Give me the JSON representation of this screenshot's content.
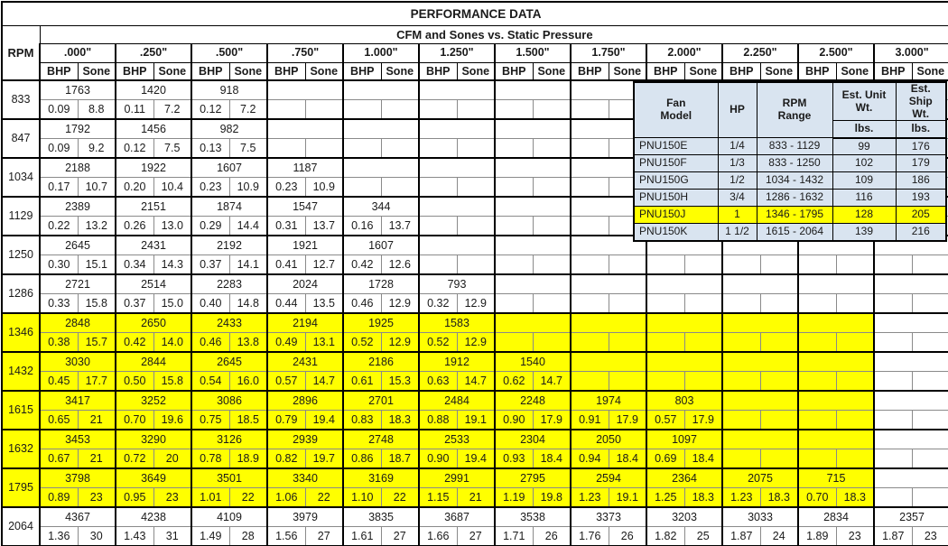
{
  "title": "PERFORMANCE DATA",
  "subtitle": "CFM and Sones vs. Static Pressure",
  "rpm_header": "RPM",
  "col_headers": {
    "bhp": "BHP",
    "sone": "Sone"
  },
  "pressures": [
    ".000\"",
    ".250\"",
    ".500\"",
    ".750\"",
    "1.000\"",
    "1.250\"",
    "1.500\"",
    "1.750\"",
    "2.000\"",
    "2.250\"",
    "2.500\"",
    "3.000\""
  ],
  "highlight_pairs": 11,
  "colors": {
    "highlight": "#ffff00",
    "overlay_bg": "#d9e4f0",
    "border": "#000000"
  },
  "performance_rows": [
    {
      "rpm": "833",
      "highlight": false,
      "points": [
        [
          "1763",
          "0.09",
          "8.8"
        ],
        [
          "1420",
          "0.11",
          "7.2"
        ],
        [
          "918",
          "0.12",
          "7.2"
        ]
      ]
    },
    {
      "rpm": "847",
      "highlight": false,
      "points": [
        [
          "1792",
          "0.09",
          "9.2"
        ],
        [
          "1456",
          "0.12",
          "7.5"
        ],
        [
          "982",
          "0.13",
          "7.5"
        ]
      ]
    },
    {
      "rpm": "1034",
      "highlight": false,
      "points": [
        [
          "2188",
          "0.17",
          "10.7"
        ],
        [
          "1922",
          "0.20",
          "10.4"
        ],
        [
          "1607",
          "0.23",
          "10.9"
        ],
        [
          "1187",
          "0.23",
          "10.9"
        ]
      ]
    },
    {
      "rpm": "1129",
      "highlight": false,
      "points": [
        [
          "2389",
          "0.22",
          "13.2"
        ],
        [
          "2151",
          "0.26",
          "13.0"
        ],
        [
          "1874",
          "0.29",
          "14.4"
        ],
        [
          "1547",
          "0.31",
          "13.7"
        ],
        [
          "344",
          "0.16",
          "13.7"
        ]
      ]
    },
    {
      "rpm": "1250",
      "highlight": false,
      "points": [
        [
          "2645",
          "0.30",
          "15.1"
        ],
        [
          "2431",
          "0.34",
          "14.3"
        ],
        [
          "2192",
          "0.37",
          "14.1"
        ],
        [
          "1921",
          "0.41",
          "12.7"
        ],
        [
          "1607",
          "0.42",
          "12.6"
        ]
      ]
    },
    {
      "rpm": "1286",
      "highlight": false,
      "points": [
        [
          "2721",
          "0.33",
          "15.8"
        ],
        [
          "2514",
          "0.37",
          "15.0"
        ],
        [
          "2283",
          "0.40",
          "14.8"
        ],
        [
          "2024",
          "0.44",
          "13.5"
        ],
        [
          "1728",
          "0.46",
          "12.9"
        ],
        [
          "793",
          "0.32",
          "12.9"
        ]
      ]
    },
    {
      "rpm": "1346",
      "highlight": true,
      "points": [
        [
          "2848",
          "0.38",
          "15.7"
        ],
        [
          "2650",
          "0.42",
          "14.0"
        ],
        [
          "2433",
          "0.46",
          "13.8"
        ],
        [
          "2194",
          "0.49",
          "13.1"
        ],
        [
          "1925",
          "0.52",
          "12.9"
        ],
        [
          "1583",
          "0.52",
          "12.9"
        ]
      ]
    },
    {
      "rpm": "1432",
      "highlight": true,
      "points": [
        [
          "3030",
          "0.45",
          "17.7"
        ],
        [
          "2844",
          "0.50",
          "15.8"
        ],
        [
          "2645",
          "0.54",
          "16.0"
        ],
        [
          "2431",
          "0.57",
          "14.7"
        ],
        [
          "2186",
          "0.61",
          "15.3"
        ],
        [
          "1912",
          "0.63",
          "14.7"
        ],
        [
          "1540",
          "0.62",
          "14.7"
        ]
      ]
    },
    {
      "rpm": "1615",
      "highlight": true,
      "points": [
        [
          "3417",
          "0.65",
          "21"
        ],
        [
          "3252",
          "0.70",
          "19.6"
        ],
        [
          "3086",
          "0.75",
          "18.5"
        ],
        [
          "2896",
          "0.79",
          "19.4"
        ],
        [
          "2701",
          "0.83",
          "18.3"
        ],
        [
          "2484",
          "0.88",
          "19.1"
        ],
        [
          "2248",
          "0.90",
          "17.9"
        ],
        [
          "1974",
          "0.91",
          "17.9"
        ],
        [
          "803",
          "0.57",
          "17.9"
        ]
      ]
    },
    {
      "rpm": "1632",
      "highlight": true,
      "points": [
        [
          "3453",
          "0.67",
          "21"
        ],
        [
          "3290",
          "0.72",
          "20"
        ],
        [
          "3126",
          "0.78",
          "18.9"
        ],
        [
          "2939",
          "0.82",
          "19.7"
        ],
        [
          "2748",
          "0.86",
          "18.7"
        ],
        [
          "2533",
          "0.90",
          "19.4"
        ],
        [
          "2304",
          "0.93",
          "18.4"
        ],
        [
          "2050",
          "0.94",
          "18.4"
        ],
        [
          "1097",
          "0.69",
          "18.4"
        ]
      ]
    },
    {
      "rpm": "1795",
      "highlight": true,
      "points": [
        [
          "3798",
          "0.89",
          "23"
        ],
        [
          "3649",
          "0.95",
          "23"
        ],
        [
          "3501",
          "1.01",
          "22"
        ],
        [
          "3340",
          "1.06",
          "22"
        ],
        [
          "3169",
          "1.10",
          "22"
        ],
        [
          "2991",
          "1.15",
          "21"
        ],
        [
          "2795",
          "1.19",
          "19.8"
        ],
        [
          "2594",
          "1.23",
          "19.1"
        ],
        [
          "2364",
          "1.25",
          "18.3"
        ],
        [
          "2075",
          "1.23",
          "18.3"
        ],
        [
          "715",
          "0.70",
          "18.3"
        ]
      ]
    },
    {
      "rpm": "2064",
      "highlight": false,
      "points": [
        [
          "4367",
          "1.36",
          "30"
        ],
        [
          "4238",
          "1.43",
          "31"
        ],
        [
          "4109",
          "1.49",
          "28"
        ],
        [
          "3979",
          "1.56",
          "27"
        ],
        [
          "3835",
          "1.61",
          "27"
        ],
        [
          "3687",
          "1.66",
          "27"
        ],
        [
          "3538",
          "1.71",
          "26"
        ],
        [
          "3373",
          "1.76",
          "26"
        ],
        [
          "3203",
          "1.82",
          "25"
        ],
        [
          "3033",
          "1.87",
          "24"
        ],
        [
          "2834",
          "1.89",
          "23"
        ],
        [
          "2357",
          "1.87",
          "23"
        ]
      ]
    }
  ],
  "overlay": {
    "headers": {
      "fan_model": "Fan\nModel",
      "hp": "HP",
      "rpm_range": "RPM\nRange",
      "est_unit": "Est. Unit\nWt.",
      "est_ship": "Est. Ship\nWt.",
      "lbs": "lbs."
    },
    "rows": [
      {
        "model": "PNU150E",
        "hp": "1/4",
        "range": "833 - 1129",
        "unit": "99",
        "ship": "176",
        "highlight": false
      },
      {
        "model": "PNU150F",
        "hp": "1/3",
        "range": "833 - 1250",
        "unit": "102",
        "ship": "179",
        "highlight": false
      },
      {
        "model": "PNU150G",
        "hp": "1/2",
        "range": "1034 - 1432",
        "unit": "109",
        "ship": "186",
        "highlight": false
      },
      {
        "model": "PNU150H",
        "hp": "3/4",
        "range": "1286 - 1632",
        "unit": "116",
        "ship": "193",
        "highlight": false
      },
      {
        "model": "PNU150J",
        "hp": "1",
        "range": "1346 - 1795",
        "unit": "128",
        "ship": "205",
        "highlight": true
      },
      {
        "model": "PNU150K",
        "hp": "1 1/2",
        "range": "1615 - 2064",
        "unit": "139",
        "ship": "216",
        "highlight": false
      }
    ]
  }
}
